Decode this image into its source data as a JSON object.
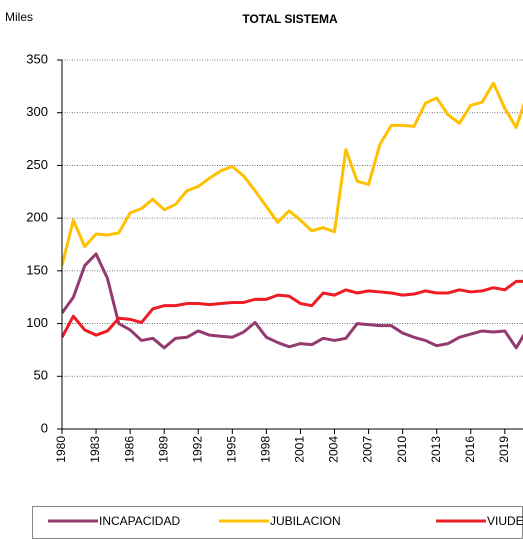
{
  "chart_data": {
    "type": "line",
    "title": "TOTAL SISTEMA",
    "y_label": "Miles",
    "x": [
      1980,
      1981,
      1982,
      1983,
      1984,
      1985,
      1986,
      1987,
      1988,
      1989,
      1990,
      1991,
      1992,
      1993,
      1994,
      1995,
      1996,
      1997,
      1998,
      1999,
      2000,
      2001,
      2002,
      2003,
      2004,
      2005,
      2006,
      2007,
      2008,
      2009,
      2010,
      2011,
      2012,
      2013,
      2014,
      2015,
      2016,
      2017,
      2018,
      2019,
      2020,
      2021
    ],
    "series": [
      {
        "name": "INCAPACIDAD",
        "color": "#933a6e",
        "values": [
          110,
          125,
          155,
          166,
          143,
          100,
          94,
          84,
          86,
          77,
          86,
          87,
          93,
          89,
          88,
          87,
          92,
          101,
          87,
          82,
          78,
          81,
          80,
          86,
          84,
          86,
          100,
          99,
          98,
          98,
          91,
          87,
          84,
          79,
          81,
          87,
          90,
          93,
          92,
          93,
          77,
          95
        ]
      },
      {
        "name": "JUBILACION",
        "color": "#ffc000",
        "values": [
          155,
          198,
          173,
          185,
          184,
          186,
          205,
          209,
          218,
          208,
          213,
          226,
          230,
          238,
          245,
          249,
          240,
          226,
          211,
          196,
          207,
          198,
          188,
          191,
          187,
          265,
          235,
          232,
          270,
          288,
          288,
          287,
          309,
          314,
          298,
          290,
          307,
          310,
          328,
          304,
          286,
          318
        ]
      },
      {
        "name": "VIUDEDAD",
        "color": "#ee1c25",
        "values": [
          87,
          107,
          94,
          89,
          93,
          105,
          104,
          101,
          114,
          117,
          117,
          119,
          119,
          118,
          119,
          120,
          120,
          123,
          123,
          127,
          126,
          119,
          117,
          129,
          127,
          132,
          129,
          131,
          130,
          129,
          127,
          128,
          131,
          129,
          129,
          132,
          130,
          131,
          134,
          132,
          140,
          140
        ]
      }
    ],
    "xlim": [
      1980,
      2020.6
    ],
    "xticks": [
      1980,
      1983,
      1986,
      1989,
      1992,
      1995,
      1998,
      2001,
      2004,
      2007,
      2010,
      2013,
      2016,
      2019
    ],
    "ylim": [
      0,
      350
    ],
    "yticks": [
      0,
      50,
      100,
      150,
      200,
      250,
      300,
      350
    ],
    "grid": true,
    "legend": "bottom"
  }
}
